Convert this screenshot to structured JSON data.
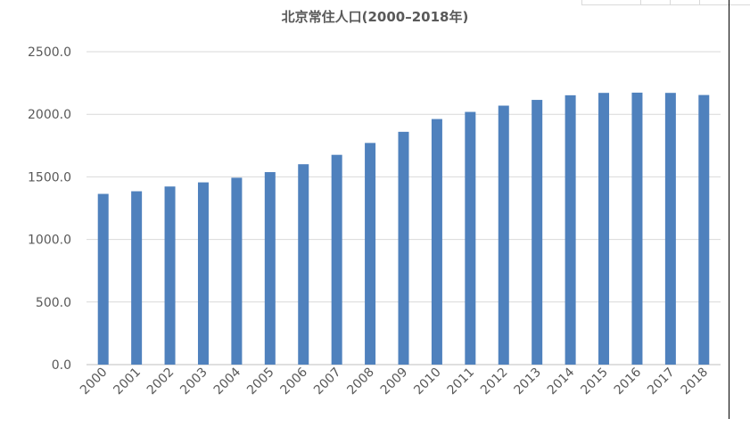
{
  "chart_data": {
    "type": "bar",
    "title": "北京常住人口(2000–2018年)",
    "xlabel": "",
    "ylabel": "",
    "ylim": [
      0,
      2500
    ],
    "yticks": [
      "0.0",
      "500.0",
      "1000.0",
      "1500.0",
      "2000.0",
      "2500.0"
    ],
    "grid": true,
    "legend": "none",
    "bar_color": "#4f81bd",
    "categories": [
      "2000",
      "2001",
      "2002",
      "2003",
      "2004",
      "2005",
      "2006",
      "2007",
      "2008",
      "2009",
      "2010",
      "2011",
      "2012",
      "2013",
      "2014",
      "2015",
      "2016",
      "2017",
      "2018"
    ],
    "series": [
      {
        "name": "常住人口",
        "values": [
          1364,
          1385,
          1423,
          1456,
          1493,
          1538,
          1601,
          1676,
          1771,
          1860,
          1962,
          2019,
          2069,
          2115,
          2152,
          2171,
          2173,
          2171,
          2154
        ]
      }
    ]
  }
}
